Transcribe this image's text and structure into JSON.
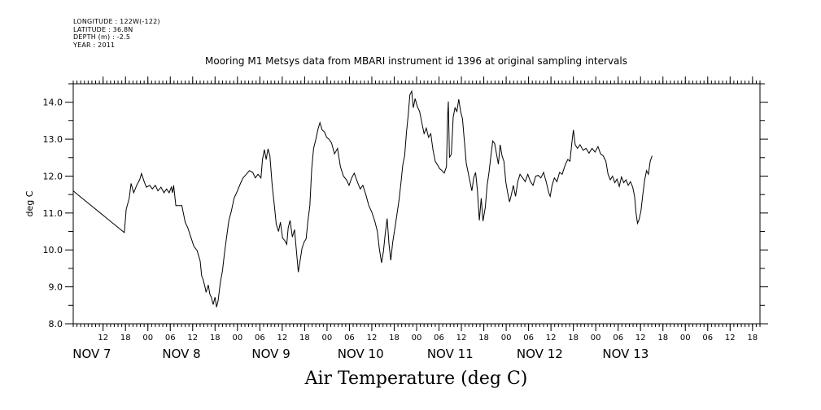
{
  "meta_lines": [
    "LONGITUDE : 122W(-122)",
    "LATITUDE : 36.8N",
    "DEPTH (m) : -2.5",
    "YEAR : 2011"
  ],
  "chart_data": {
    "type": "line",
    "title": "Mooring M1 Metsys data from MBARI instrument id 1396 at original sampling intervals",
    "xlabel": "Air Temperature (deg C)",
    "ylabel": "deg C",
    "ylim": [
      8.0,
      14.5
    ],
    "yticks": [
      "8.0",
      "9.0",
      "10.0",
      "11.0",
      "12.0",
      "13.0",
      "14.0"
    ],
    "x_unit": "hours since Nov 7 00:00, 2011",
    "xlim": [
      4,
      188
    ],
    "hour_ticks": [
      {
        "h": 12,
        "label": "12"
      },
      {
        "h": 18,
        "label": "18"
      },
      {
        "h": 24,
        "label": "00"
      },
      {
        "h": 30,
        "label": "06"
      },
      {
        "h": 36,
        "label": "12"
      },
      {
        "h": 42,
        "label": "18"
      },
      {
        "h": 48,
        "label": "00"
      },
      {
        "h": 54,
        "label": "06"
      },
      {
        "h": 60,
        "label": "12"
      },
      {
        "h": 66,
        "label": "18"
      },
      {
        "h": 72,
        "label": "00"
      },
      {
        "h": 78,
        "label": "06"
      },
      {
        "h": 84,
        "label": "12"
      },
      {
        "h": 90,
        "label": "18"
      },
      {
        "h": 96,
        "label": "00"
      },
      {
        "h": 102,
        "label": "06"
      },
      {
        "h": 108,
        "label": "12"
      },
      {
        "h": 114,
        "label": "18"
      },
      {
        "h": 120,
        "label": "00"
      },
      {
        "h": 126,
        "label": "06"
      },
      {
        "h": 132,
        "label": "12"
      },
      {
        "h": 138,
        "label": "18"
      },
      {
        "h": 144,
        "label": "00"
      },
      {
        "h": 150,
        "label": "06"
      },
      {
        "h": 156,
        "label": "12"
      },
      {
        "h": 162,
        "label": "18"
      },
      {
        "h": 168,
        "label": "00"
      },
      {
        "h": 174,
        "label": "06"
      },
      {
        "h": 180,
        "label": "12"
      },
      {
        "h": 186,
        "label": "18"
      }
    ],
    "day_labels": [
      {
        "h": 9,
        "label": "NOV  7"
      },
      {
        "h": 33,
        "label": "NOV  8"
      },
      {
        "h": 57,
        "label": "NOV  9"
      },
      {
        "h": 81,
        "label": "NOV 10"
      },
      {
        "h": 105,
        "label": "NOV 11"
      },
      {
        "h": 129,
        "label": "NOV 12"
      },
      {
        "h": 152,
        "label": "NOV 13"
      }
    ],
    "series": [
      {
        "color": "#000000",
        "points": [
          [
            4.0,
            11.6
          ],
          [
            5.2,
            11.5
          ],
          [
            17.7,
            10.47
          ],
          [
            18.2,
            11.1
          ],
          [
            19.0,
            11.4
          ],
          [
            19.5,
            11.8
          ],
          [
            20.2,
            11.55
          ],
          [
            21.0,
            11.75
          ],
          [
            21.8,
            11.9
          ],
          [
            22.3,
            12.07
          ],
          [
            23.0,
            11.85
          ],
          [
            23.6,
            11.7
          ],
          [
            24.5,
            11.75
          ],
          [
            25.2,
            11.65
          ],
          [
            26.0,
            11.75
          ],
          [
            26.7,
            11.6
          ],
          [
            27.5,
            11.7
          ],
          [
            28.3,
            11.55
          ],
          [
            29.0,
            11.65
          ],
          [
            29.7,
            11.55
          ],
          [
            30.3,
            11.7
          ],
          [
            30.6,
            11.55
          ],
          [
            30.9,
            11.75
          ],
          [
            31.5,
            11.2
          ],
          [
            32.3,
            11.2
          ],
          [
            33.1,
            11.2
          ],
          [
            34.0,
            10.75
          ],
          [
            34.7,
            10.6
          ],
          [
            35.5,
            10.35
          ],
          [
            36.3,
            10.1
          ],
          [
            37.2,
            9.98
          ],
          [
            38.0,
            9.7
          ],
          [
            38.4,
            9.3
          ],
          [
            38.8,
            9.2
          ],
          [
            39.3,
            9.0
          ],
          [
            39.6,
            8.85
          ],
          [
            40.2,
            9.05
          ],
          [
            40.6,
            8.8
          ],
          [
            41.0,
            8.72
          ],
          [
            41.5,
            8.52
          ],
          [
            42.0,
            8.72
          ],
          [
            42.4,
            8.45
          ],
          [
            42.8,
            8.62
          ],
          [
            43.4,
            9.1
          ],
          [
            44.0,
            9.45
          ],
          [
            44.5,
            9.9
          ],
          [
            45.1,
            10.35
          ],
          [
            45.7,
            10.8
          ],
          [
            46.3,
            11.02
          ],
          [
            47.1,
            11.4
          ],
          [
            48.0,
            11.6
          ],
          [
            48.8,
            11.8
          ],
          [
            49.5,
            11.95
          ],
          [
            50.4,
            12.05
          ],
          [
            51.2,
            12.15
          ],
          [
            52.1,
            12.1
          ],
          [
            52.8,
            11.95
          ],
          [
            53.5,
            12.05
          ],
          [
            54.3,
            11.95
          ],
          [
            54.7,
            12.45
          ],
          [
            55.2,
            12.72
          ],
          [
            55.7,
            12.45
          ],
          [
            56.2,
            12.74
          ],
          [
            56.7,
            12.55
          ],
          [
            57.3,
            11.75
          ],
          [
            57.9,
            11.2
          ],
          [
            58.4,
            10.7
          ],
          [
            59.0,
            10.5
          ],
          [
            59.5,
            10.75
          ],
          [
            60.1,
            10.32
          ],
          [
            60.7,
            10.25
          ],
          [
            61.2,
            10.15
          ],
          [
            61.6,
            10.6
          ],
          [
            62.1,
            10.8
          ],
          [
            62.7,
            10.35
          ],
          [
            63.3,
            10.55
          ],
          [
            63.9,
            9.85
          ],
          [
            64.3,
            9.4
          ],
          [
            64.8,
            9.72
          ],
          [
            65.3,
            10.05
          ],
          [
            65.9,
            10.22
          ],
          [
            66.4,
            10.3
          ],
          [
            66.9,
            10.8
          ],
          [
            67.4,
            11.2
          ],
          [
            67.9,
            12.2
          ],
          [
            68.4,
            12.75
          ],
          [
            69.0,
            13.0
          ],
          [
            69.6,
            13.28
          ],
          [
            70.1,
            13.45
          ],
          [
            70.7,
            13.25
          ],
          [
            71.3,
            13.2
          ],
          [
            71.9,
            13.05
          ],
          [
            72.5,
            13.0
          ],
          [
            73.2,
            12.9
          ],
          [
            74.0,
            12.6
          ],
          [
            74.8,
            12.75
          ],
          [
            75.6,
            12.25
          ],
          [
            76.4,
            12.0
          ],
          [
            77.2,
            11.9
          ],
          [
            77.9,
            11.75
          ],
          [
            78.6,
            11.95
          ],
          [
            79.3,
            12.08
          ],
          [
            80.1,
            11.85
          ],
          [
            80.9,
            11.65
          ],
          [
            81.6,
            11.75
          ],
          [
            82.4,
            11.5
          ],
          [
            83.2,
            11.2
          ],
          [
            84.0,
            11.02
          ],
          [
            84.8,
            10.78
          ],
          [
            85.5,
            10.5
          ],
          [
            86.0,
            10.05
          ],
          [
            86.6,
            9.65
          ],
          [
            87.1,
            9.95
          ],
          [
            87.6,
            10.45
          ],
          [
            88.1,
            10.85
          ],
          [
            88.6,
            10.15
          ],
          [
            89.1,
            9.72
          ],
          [
            89.6,
            10.2
          ],
          [
            90.2,
            10.6
          ],
          [
            90.8,
            11.0
          ],
          [
            91.3,
            11.35
          ],
          [
            91.8,
            11.8
          ],
          [
            92.3,
            12.3
          ],
          [
            92.8,
            12.55
          ],
          [
            93.3,
            13.2
          ],
          [
            93.8,
            13.7
          ],
          [
            94.2,
            14.2
          ],
          [
            94.7,
            14.3
          ],
          [
            95.1,
            13.85
          ],
          [
            95.6,
            14.1
          ],
          [
            96.2,
            13.88
          ],
          [
            96.8,
            13.75
          ],
          [
            97.4,
            13.45
          ],
          [
            98.0,
            13.15
          ],
          [
            98.6,
            13.3
          ],
          [
            99.2,
            13.05
          ],
          [
            99.8,
            13.15
          ],
          [
            100.4,
            12.7
          ],
          [
            101.0,
            12.4
          ],
          [
            101.6,
            12.3
          ],
          [
            102.2,
            12.2
          ],
          [
            102.8,
            12.15
          ],
          [
            103.4,
            12.08
          ],
          [
            104.0,
            12.25
          ],
          [
            104.3,
            13.6
          ],
          [
            104.5,
            14.02
          ],
          [
            104.8,
            12.5
          ],
          [
            105.3,
            12.6
          ],
          [
            105.8,
            13.6
          ],
          [
            106.3,
            13.85
          ],
          [
            106.8,
            13.75
          ],
          [
            107.3,
            14.08
          ],
          [
            107.8,
            13.75
          ],
          [
            108.3,
            13.55
          ],
          [
            108.8,
            12.95
          ],
          [
            109.3,
            12.35
          ],
          [
            109.8,
            12.1
          ],
          [
            110.3,
            11.85
          ],
          [
            110.8,
            11.6
          ],
          [
            111.3,
            11.95
          ],
          [
            111.8,
            12.1
          ],
          [
            112.3,
            11.6
          ],
          [
            112.8,
            10.8
          ],
          [
            113.3,
            11.4
          ],
          [
            113.8,
            10.78
          ],
          [
            114.4,
            11.15
          ],
          [
            114.9,
            11.75
          ],
          [
            115.4,
            12.1
          ],
          [
            115.9,
            12.55
          ],
          [
            116.4,
            12.95
          ],
          [
            116.9,
            12.88
          ],
          [
            117.4,
            12.6
          ],
          [
            117.9,
            12.32
          ],
          [
            118.4,
            12.85
          ],
          [
            118.9,
            12.55
          ],
          [
            119.4,
            12.4
          ],
          [
            119.9,
            11.85
          ],
          [
            120.4,
            11.55
          ],
          [
            120.9,
            11.3
          ],
          [
            121.4,
            11.5
          ],
          [
            121.9,
            11.75
          ],
          [
            122.5,
            11.45
          ],
          [
            123.1,
            11.85
          ],
          [
            123.7,
            12.05
          ],
          [
            124.4,
            11.95
          ],
          [
            125.1,
            11.85
          ],
          [
            125.8,
            12.05
          ],
          [
            126.5,
            11.85
          ],
          [
            127.2,
            11.75
          ],
          [
            127.9,
            12.0
          ],
          [
            128.6,
            12.02
          ],
          [
            129.3,
            11.95
          ],
          [
            130.0,
            12.1
          ],
          [
            130.7,
            11.85
          ],
          [
            131.4,
            11.55
          ],
          [
            131.8,
            11.45
          ],
          [
            132.3,
            11.75
          ],
          [
            132.9,
            11.95
          ],
          [
            133.6,
            11.85
          ],
          [
            134.3,
            12.1
          ],
          [
            135.0,
            12.05
          ],
          [
            135.8,
            12.3
          ],
          [
            136.5,
            12.45
          ],
          [
            137.1,
            12.4
          ],
          [
            137.6,
            12.9
          ],
          [
            138.0,
            13.25
          ],
          [
            138.5,
            12.85
          ],
          [
            139.1,
            12.75
          ],
          [
            139.8,
            12.85
          ],
          [
            140.6,
            12.7
          ],
          [
            141.4,
            12.75
          ],
          [
            142.2,
            12.62
          ],
          [
            143.0,
            12.75
          ],
          [
            143.8,
            12.65
          ],
          [
            144.6,
            12.8
          ],
          [
            145.3,
            12.6
          ],
          [
            146.0,
            12.55
          ],
          [
            146.7,
            12.4
          ],
          [
            147.3,
            12.05
          ],
          [
            147.9,
            11.9
          ],
          [
            148.5,
            12.0
          ],
          [
            149.1,
            11.82
          ],
          [
            149.7,
            11.92
          ],
          [
            150.3,
            11.72
          ],
          [
            150.9,
            11.98
          ],
          [
            151.5,
            11.82
          ],
          [
            152.1,
            11.9
          ],
          [
            152.7,
            11.75
          ],
          [
            153.3,
            11.85
          ],
          [
            153.9,
            11.7
          ],
          [
            154.4,
            11.45
          ],
          [
            154.8,
            11.0
          ],
          [
            155.2,
            10.72
          ],
          [
            155.6,
            10.82
          ],
          [
            156.1,
            11.05
          ],
          [
            156.6,
            11.5
          ],
          [
            157.1,
            11.9
          ],
          [
            157.6,
            12.15
          ],
          [
            158.1,
            12.05
          ],
          [
            158.6,
            12.4
          ],
          [
            159.1,
            12.55
          ]
        ]
      }
    ],
    "x_data_min": 4.0,
    "x_data_max": 159.1
  }
}
